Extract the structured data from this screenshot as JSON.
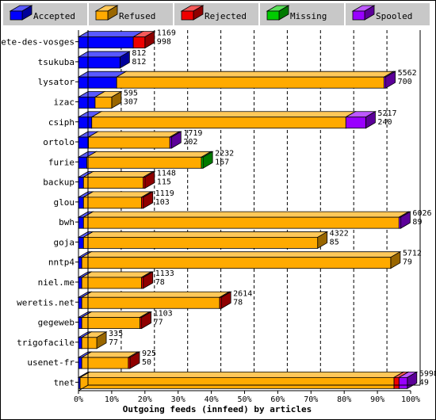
{
  "colors": {
    "accepted": "#0000ff",
    "refused": "#ffaa00",
    "rejected": "#ee0000",
    "missing": "#00cc00",
    "spooled": "#9900ff",
    "legend_bg": "#c8c8c8"
  },
  "legend": [
    {
      "key": "accepted",
      "label": "Accepted"
    },
    {
      "key": "refused",
      "label": "Refused"
    },
    {
      "key": "rejected",
      "label": "Rejected"
    },
    {
      "key": "missing",
      "label": "Missing"
    },
    {
      "key": "spooled",
      "label": "Spooled"
    }
  ],
  "chart_data": {
    "type": "bar",
    "orientation": "horizontal",
    "stacked": true,
    "xlabel": "Outgoing feeds (innfeed) by articles",
    "ylabel": "",
    "xlim": [
      0,
      100
    ],
    "x_unit": "%",
    "x_ticks": [
      "0%",
      "10%",
      "20%",
      "30%",
      "40%",
      "50%",
      "60%",
      "70%",
      "80%",
      "90%",
      "100%"
    ],
    "grid": true,
    "legend_position": "top",
    "series_order": [
      "accepted",
      "refused",
      "rejected",
      "missing",
      "spooled"
    ],
    "rows": [
      {
        "label": "bete-des-vosges",
        "total": "1169",
        "accepted_count": "998",
        "segments": {
          "accepted": 16.5,
          "refused": 0,
          "rejected": 3.5,
          "missing": 0,
          "spooled": 0
        }
      },
      {
        "label": "tsukuba",
        "total": "812",
        "accepted_count": "812",
        "segments": {
          "accepted": 12.5,
          "refused": 0,
          "rejected": 0,
          "missing": 0,
          "spooled": 0
        }
      },
      {
        "label": "lysator",
        "total": "5562",
        "accepted_count": "700",
        "segments": {
          "accepted": 11.5,
          "refused": 80.5,
          "rejected": 0,
          "missing": 0,
          "spooled": 0.5
        }
      },
      {
        "label": "izac",
        "total": "595",
        "accepted_count": "307",
        "segments": {
          "accepted": 5,
          "refused": 5,
          "rejected": 0,
          "missing": 0,
          "spooled": 0
        }
      },
      {
        "label": "csiph",
        "total": "5217",
        "accepted_count": "240",
        "segments": {
          "accepted": 4,
          "refused": 76.5,
          "rejected": 0,
          "missing": 0,
          "spooled": 6
        }
      },
      {
        "label": "ortolo",
        "total": "1719",
        "accepted_count": "202",
        "segments": {
          "accepted": 3,
          "refused": 24.5,
          "rejected": 0,
          "missing": 0,
          "spooled": 0.5
        }
      },
      {
        "label": "furie",
        "total": "2232",
        "accepted_count": "167",
        "segments": {
          "accepted": 2.5,
          "refused": 34.5,
          "rejected": 0,
          "missing": 0.5,
          "spooled": 0
        }
      },
      {
        "label": "backup",
        "total": "1148",
        "accepted_count": "115",
        "segments": {
          "accepted": 1.5,
          "refused": 18,
          "rejected": 0.5,
          "missing": 0,
          "spooled": 0
        }
      },
      {
        "label": "glou",
        "total": "1119",
        "accepted_count": "103",
        "segments": {
          "accepted": 1.5,
          "refused": 17.5,
          "rejected": 0.5,
          "missing": 0,
          "spooled": 0
        }
      },
      {
        "label": "bwh",
        "total": "6026",
        "accepted_count": "89",
        "segments": {
          "accepted": 1.5,
          "refused": 95,
          "rejected": 0,
          "missing": 0,
          "spooled": 0.5
        }
      },
      {
        "label": "goja",
        "total": "4322",
        "accepted_count": "85",
        "segments": {
          "accepted": 1.5,
          "refused": 70.5,
          "rejected": 0,
          "missing": 0,
          "spooled": 0
        }
      },
      {
        "label": "nntp4",
        "total": "5712",
        "accepted_count": "79",
        "segments": {
          "accepted": 1,
          "refused": 93,
          "rejected": 0,
          "missing": 0,
          "spooled": 0
        }
      },
      {
        "label": "niel.me",
        "total": "1133",
        "accepted_count": "78",
        "segments": {
          "accepted": 1,
          "refused": 18,
          "rejected": 0.5,
          "missing": 0,
          "spooled": 0
        }
      },
      {
        "label": "weretis.net",
        "total": "2614",
        "accepted_count": "78",
        "segments": {
          "accepted": 1,
          "refused": 41.5,
          "rejected": 0.5,
          "missing": 0,
          "spooled": 0
        }
      },
      {
        "label": "gegeweb",
        "total": "1103",
        "accepted_count": "77",
        "segments": {
          "accepted": 1,
          "refused": 17.5,
          "rejected": 0.5,
          "missing": 0,
          "spooled": 0
        }
      },
      {
        "label": "trigofacile",
        "total": "335",
        "accepted_count": "77",
        "segments": {
          "accepted": 1,
          "refused": 4.5,
          "rejected": 0,
          "missing": 0,
          "spooled": 0
        }
      },
      {
        "label": "usenet-fr",
        "total": "925",
        "accepted_count": "50",
        "segments": {
          "accepted": 1,
          "refused": 14,
          "rejected": 0.5,
          "missing": 0,
          "spooled": 0
        }
      },
      {
        "label": "tnet",
        "total": "5998",
        "accepted_count": "49",
        "segments": {
          "accepted": 0.5,
          "refused": 94.5,
          "rejected": 1.5,
          "missing": 0,
          "spooled": 2.5
        }
      }
    ]
  }
}
